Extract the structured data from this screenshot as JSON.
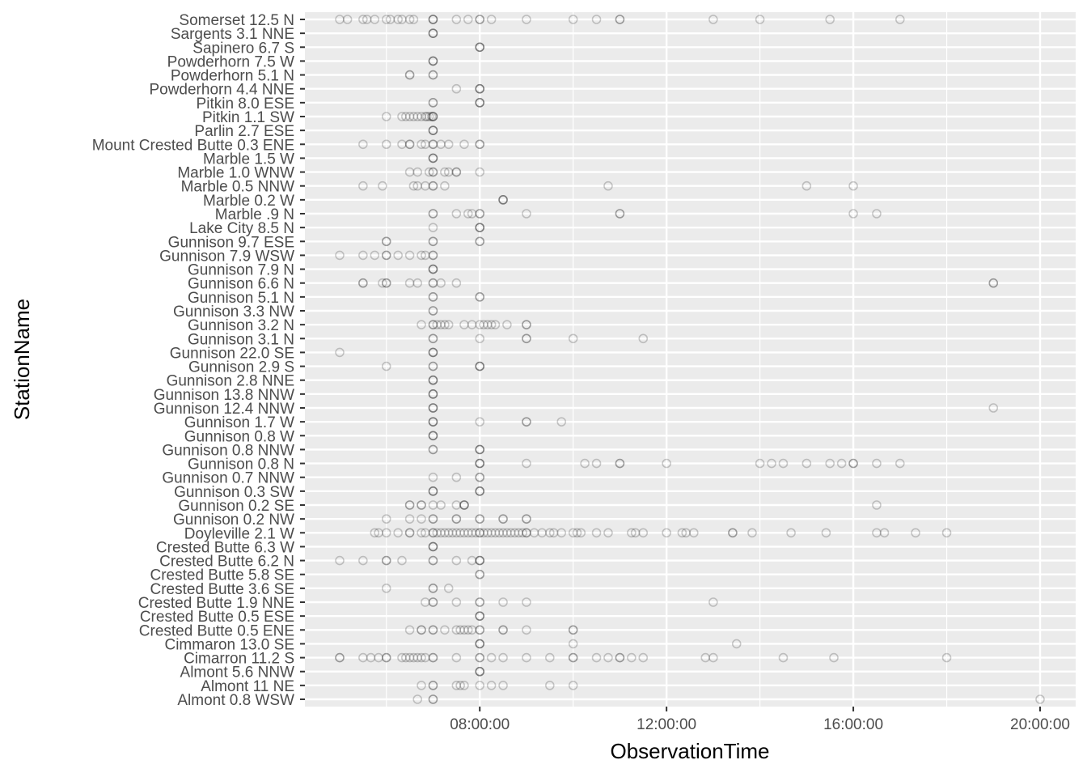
{
  "chart_data": {
    "type": "scatter",
    "xlabel": "ObservationTime",
    "ylabel": "StationName",
    "x_ticks": [
      "08:00:00",
      "12:00:00",
      "16:00:00",
      "20:00:00"
    ],
    "xlim": [
      "05:00:00",
      "20:00:00"
    ],
    "grid": true,
    "background": "#ebebeb",
    "grid_color": "#ffffff",
    "point_color": "#000000",
    "point_alpha": 0.2,
    "categories": [
      "Somerset 12.5 N",
      "Sargents 3.1 NNE",
      "Sapinero 6.7 S",
      "Powderhorn 7.5 W",
      "Powderhorn 5.1 N",
      "Powderhorn 4.4 NNE",
      "Pitkin 8.0 ESE",
      "Pitkin 1.1 SW",
      "Parlin 2.7 ESE",
      "Mount Crested Butte 0.3 ENE",
      "Marble 1.5 W",
      "Marble 1.0 WNW",
      "Marble 0.5 NNW",
      "Marble 0.2 W",
      "Marble .9 N",
      "Lake City 8.5 N",
      "Gunnison 9.7 ESE",
      "Gunnison 7.9 WSW",
      "Gunnison 7.9 N",
      "Gunnison 6.6 N",
      "Gunnison 5.1 N",
      "Gunnison 3.3 NW",
      "Gunnison 3.2 N",
      "Gunnison 3.1 N",
      "Gunnison 22.0 SE",
      "Gunnison 2.9 S",
      "Gunnison 2.8 NNE",
      "Gunnison 13.8 NNW",
      "Gunnison 12.4 NNW",
      "Gunnison 1.7 W",
      "Gunnison 0.8 W",
      "Gunnison 0.8 NNW",
      "Gunnison 0.8 N",
      "Gunnison 0.7 NNW",
      "Gunnison 0.3 SW",
      "Gunnison 0.2 SE",
      "Gunnison 0.2 NW",
      "Doyleville 2.1 W",
      "Crested Butte 6.3 W",
      "Crested Butte 6.2 N",
      "Crested Butte 5.8 SE",
      "Crested Butte 3.6 SE",
      "Crested Butte 1.9 NNE",
      "Crested Butte 0.5 ESE",
      "Crested Butte 0.5 ENE",
      "Cimmaron 13.0 SE",
      "Cimarron 11.2 S",
      "Almont 5.6 NNW",
      "Almont 11 NE",
      "Almont 0.8 WSW"
    ],
    "points": {
      "Somerset 12.5 N": [
        "05:00",
        "05:10",
        "05:30",
        "05:35",
        "05:45",
        "06:00",
        "06:05",
        "06:15",
        "06:20",
        "06:30",
        "06:35",
        "07:00",
        "07:00",
        "07:00",
        "07:30",
        "07:45",
        "08:00",
        "08:00",
        "08:15",
        "09:00",
        "10:00",
        "10:30",
        "11:00",
        "11:00",
        "13:00",
        "14:00",
        "15:30",
        "17:00"
      ],
      "Sargents 3.1 NNE": [
        "07:00",
        "07:00",
        "07:00"
      ],
      "Sapinero 6.7 S": [
        "08:00",
        "08:00",
        "08:00"
      ],
      "Powderhorn 7.5 W": [
        "07:00",
        "07:00",
        "07:00"
      ],
      "Powderhorn 5.1 N": [
        "06:30",
        "06:30",
        "07:00",
        "07:00"
      ],
      "Powderhorn 4.4 NNE": [
        "07:30",
        "08:00",
        "08:00",
        "08:00"
      ],
      "Pitkin 8.0 ESE": [
        "07:00",
        "07:00",
        "08:00",
        "08:00",
        "08:00"
      ],
      "Pitkin 1.1 SW": [
        "06:00",
        "06:20",
        "06:25",
        "06:30",
        "06:35",
        "06:40",
        "06:45",
        "06:50",
        "06:52",
        "06:55",
        "06:58",
        "07:00",
        "07:00",
        "07:00"
      ],
      "Parlin 2.7 ESE": [
        "07:00",
        "07:00",
        "07:00"
      ],
      "Mount Crested Butte 0.3 ENE": [
        "05:30",
        "06:00",
        "06:20",
        "06:30",
        "06:30",
        "06:45",
        "06:50",
        "07:00",
        "07:00",
        "07:10",
        "07:20",
        "07:40",
        "08:00",
        "08:00"
      ],
      "Marble 1.5 W": [
        "07:00",
        "07:00",
        "07:00"
      ],
      "Marble 1.0 WNW": [
        "06:30",
        "06:40",
        "06:55",
        "07:00",
        "07:00",
        "07:15",
        "07:20",
        "07:30",
        "07:30",
        "08:00"
      ],
      "Marble 0.5 NNW": [
        "05:30",
        "05:55",
        "06:35",
        "06:40",
        "06:50",
        "07:00",
        "07:00",
        "07:15",
        "10:45",
        "15:00",
        "16:00"
      ],
      "Marble 0.2 W": [
        "08:30",
        "08:30",
        "08:30"
      ],
      "Marble .9 N": [
        "07:00",
        "07:00",
        "07:30",
        "07:45",
        "07:50",
        "08:00",
        "08:00",
        "09:00",
        "11:00",
        "11:00",
        "16:00",
        "16:30"
      ],
      "Lake City 8.5 N": [
        "07:00",
        "08:00",
        "08:00",
        "08:00"
      ],
      "Gunnison 9.7 ESE": [
        "06:00",
        "06:00",
        "07:00",
        "07:00",
        "08:00",
        "08:00"
      ],
      "Gunnison 7.9 WSW": [
        "05:00",
        "05:30",
        "05:45",
        "06:00",
        "06:00",
        "06:15",
        "06:30",
        "06:45",
        "06:50",
        "07:00",
        "07:00"
      ],
      "Gunnison 7.9 N": [
        "07:00",
        "07:00",
        "07:00"
      ],
      "Gunnison 6.6 N": [
        "05:30",
        "05:30",
        "05:55",
        "06:00",
        "06:00",
        "06:30",
        "06:40",
        "07:00",
        "07:00",
        "07:10",
        "07:30",
        "19:00",
        "19:00"
      ],
      "Gunnison 5.1 N": [
        "07:00",
        "07:00",
        "08:00",
        "08:00"
      ],
      "Gunnison 3.3 NW": [
        "07:00",
        "07:00"
      ],
      "Gunnison 3.2 N": [
        "06:45",
        "07:00",
        "07:00",
        "07:05",
        "07:10",
        "07:15",
        "07:20",
        "07:40",
        "07:50",
        "08:00",
        "08:05",
        "08:10",
        "08:15",
        "08:20",
        "08:35",
        "09:00",
        "09:00"
      ],
      "Gunnison 3.1 N": [
        "07:00",
        "07:00",
        "08:00",
        "09:00",
        "09:00",
        "10:00",
        "11:30"
      ],
      "Gunnison 22.0 SE": [
        "05:00",
        "07:00",
        "07:00",
        "07:00"
      ],
      "Gunnison 2.9 S": [
        "06:00",
        "07:00",
        "07:00",
        "08:00",
        "08:00",
        "08:00"
      ],
      "Gunnison 2.8 NNE": [
        "07:00",
        "07:00",
        "07:00"
      ],
      "Gunnison 13.8 NNW": [
        "07:00",
        "07:00",
        "07:00"
      ],
      "Gunnison 12.4 NNW": [
        "07:00",
        "07:00",
        "07:00",
        "19:00"
      ],
      "Gunnison 1.7 W": [
        "07:00",
        "07:00",
        "07:00",
        "08:00",
        "09:00",
        "09:00",
        "09:45"
      ],
      "Gunnison 0.8 W": [
        "07:00",
        "07:00",
        "07:00"
      ],
      "Gunnison 0.8 NNW": [
        "07:00",
        "07:00",
        "08:00",
        "08:00",
        "08:00"
      ],
      "Gunnison 0.8 N": [
        "08:00",
        "08:00",
        "08:00",
        "09:00",
        "10:15",
        "10:30",
        "11:00",
        "11:00",
        "12:00",
        "14:00",
        "14:15",
        "14:30",
        "15:00",
        "15:30",
        "15:45",
        "16:00",
        "16:00",
        "16:30",
        "17:00"
      ],
      "Gunnison 0.7 NNW": [
        "07:00",
        "07:30",
        "08:00",
        "08:00"
      ],
      "Gunnison 0.3 SW": [
        "07:00",
        "07:00",
        "07:00",
        "08:00",
        "08:00",
        "08:00"
      ],
      "Gunnison 0.2 SE": [
        "06:30",
        "06:30",
        "06:45",
        "06:45",
        "07:00",
        "07:10",
        "07:30",
        "07:40",
        "07:40",
        "07:40",
        "16:30"
      ],
      "Gunnison 0.2 NW": [
        "06:00",
        "06:30",
        "06:45",
        "07:00",
        "07:00",
        "07:30",
        "07:30",
        "08:00",
        "08:00",
        "08:30",
        "08:30",
        "09:00",
        "09:00"
      ],
      "Doyleville 2.1 W": [
        "05:45",
        "05:50",
        "06:00",
        "06:15",
        "06:30",
        "06:30",
        "06:45",
        "06:50",
        "07:00",
        "07:00",
        "07:05",
        "07:10",
        "07:15",
        "07:20",
        "07:25",
        "07:30",
        "07:35",
        "07:40",
        "07:45",
        "07:50",
        "07:55",
        "08:00",
        "08:00",
        "08:05",
        "08:10",
        "08:15",
        "08:20",
        "08:25",
        "08:30",
        "08:35",
        "08:40",
        "08:45",
        "08:50",
        "08:55",
        "09:00",
        "09:00",
        "09:10",
        "09:20",
        "09:30",
        "09:35",
        "09:45",
        "10:00",
        "10:05",
        "10:10",
        "10:30",
        "10:45",
        "11:15",
        "11:20",
        "11:30",
        "12:00",
        "12:20",
        "12:25",
        "12:35",
        "13:25",
        "13:25",
        "13:50",
        "14:40",
        "15:25",
        "16:30",
        "16:40",
        "17:20",
        "18:00"
      ],
      "Crested Butte 6.3 W": [
        "07:00",
        "07:00",
        "07:00"
      ],
      "Crested Butte 6.2 N": [
        "05:00",
        "05:30",
        "06:00",
        "06:00",
        "06:20",
        "07:00",
        "07:00",
        "07:30",
        "07:50",
        "08:00",
        "08:00",
        "08:00"
      ],
      "Crested Butte 5.8 SE": [
        "08:00",
        "08:00"
      ],
      "Crested Butte 3.6 SE": [
        "06:00",
        "07:00",
        "07:00",
        "07:20"
      ],
      "Crested Butte 1.9 NNE": [
        "06:50",
        "07:00",
        "07:00",
        "07:30",
        "08:00",
        "08:00",
        "08:30",
        "09:00",
        "13:00"
      ],
      "Crested Butte 0.5 ESE": [
        "08:00",
        "08:00",
        "08:00"
      ],
      "Crested Butte 0.5 ENE": [
        "06:30",
        "06:45",
        "06:45",
        "07:00",
        "07:00",
        "07:15",
        "07:30",
        "07:35",
        "07:40",
        "07:45",
        "07:50",
        "08:00",
        "08:00",
        "08:30",
        "08:30",
        "09:00",
        "10:00",
        "10:00"
      ],
      "Cimmaron 13.0 SE": [
        "08:00",
        "08:00",
        "08:00",
        "10:00",
        "13:30"
      ],
      "Cimarron 11.2 S": [
        "05:00",
        "05:00",
        "05:30",
        "05:40",
        "05:50",
        "06:00",
        "06:00",
        "06:20",
        "06:25",
        "06:30",
        "06:35",
        "06:40",
        "06:45",
        "06:50",
        "07:00",
        "07:00",
        "07:30",
        "08:00",
        "08:00",
        "08:15",
        "08:30",
        "09:00",
        "09:30",
        "10:00",
        "10:00",
        "10:30",
        "10:45",
        "11:00",
        "11:00",
        "11:15",
        "11:30",
        "12:50",
        "13:00",
        "14:30",
        "15:35",
        "18:00"
      ],
      "Almont 5.6 NNW": [
        "08:00",
        "08:00",
        "08:00"
      ],
      "Almont 11 NE": [
        "06:45",
        "07:00",
        "07:00",
        "07:30",
        "07:35",
        "07:40",
        "08:00",
        "08:15",
        "08:30",
        "09:30",
        "10:00"
      ],
      "Almont 0.8 WSW": [
        "06:40",
        "07:00",
        "07:00",
        "20:00"
      ]
    }
  }
}
